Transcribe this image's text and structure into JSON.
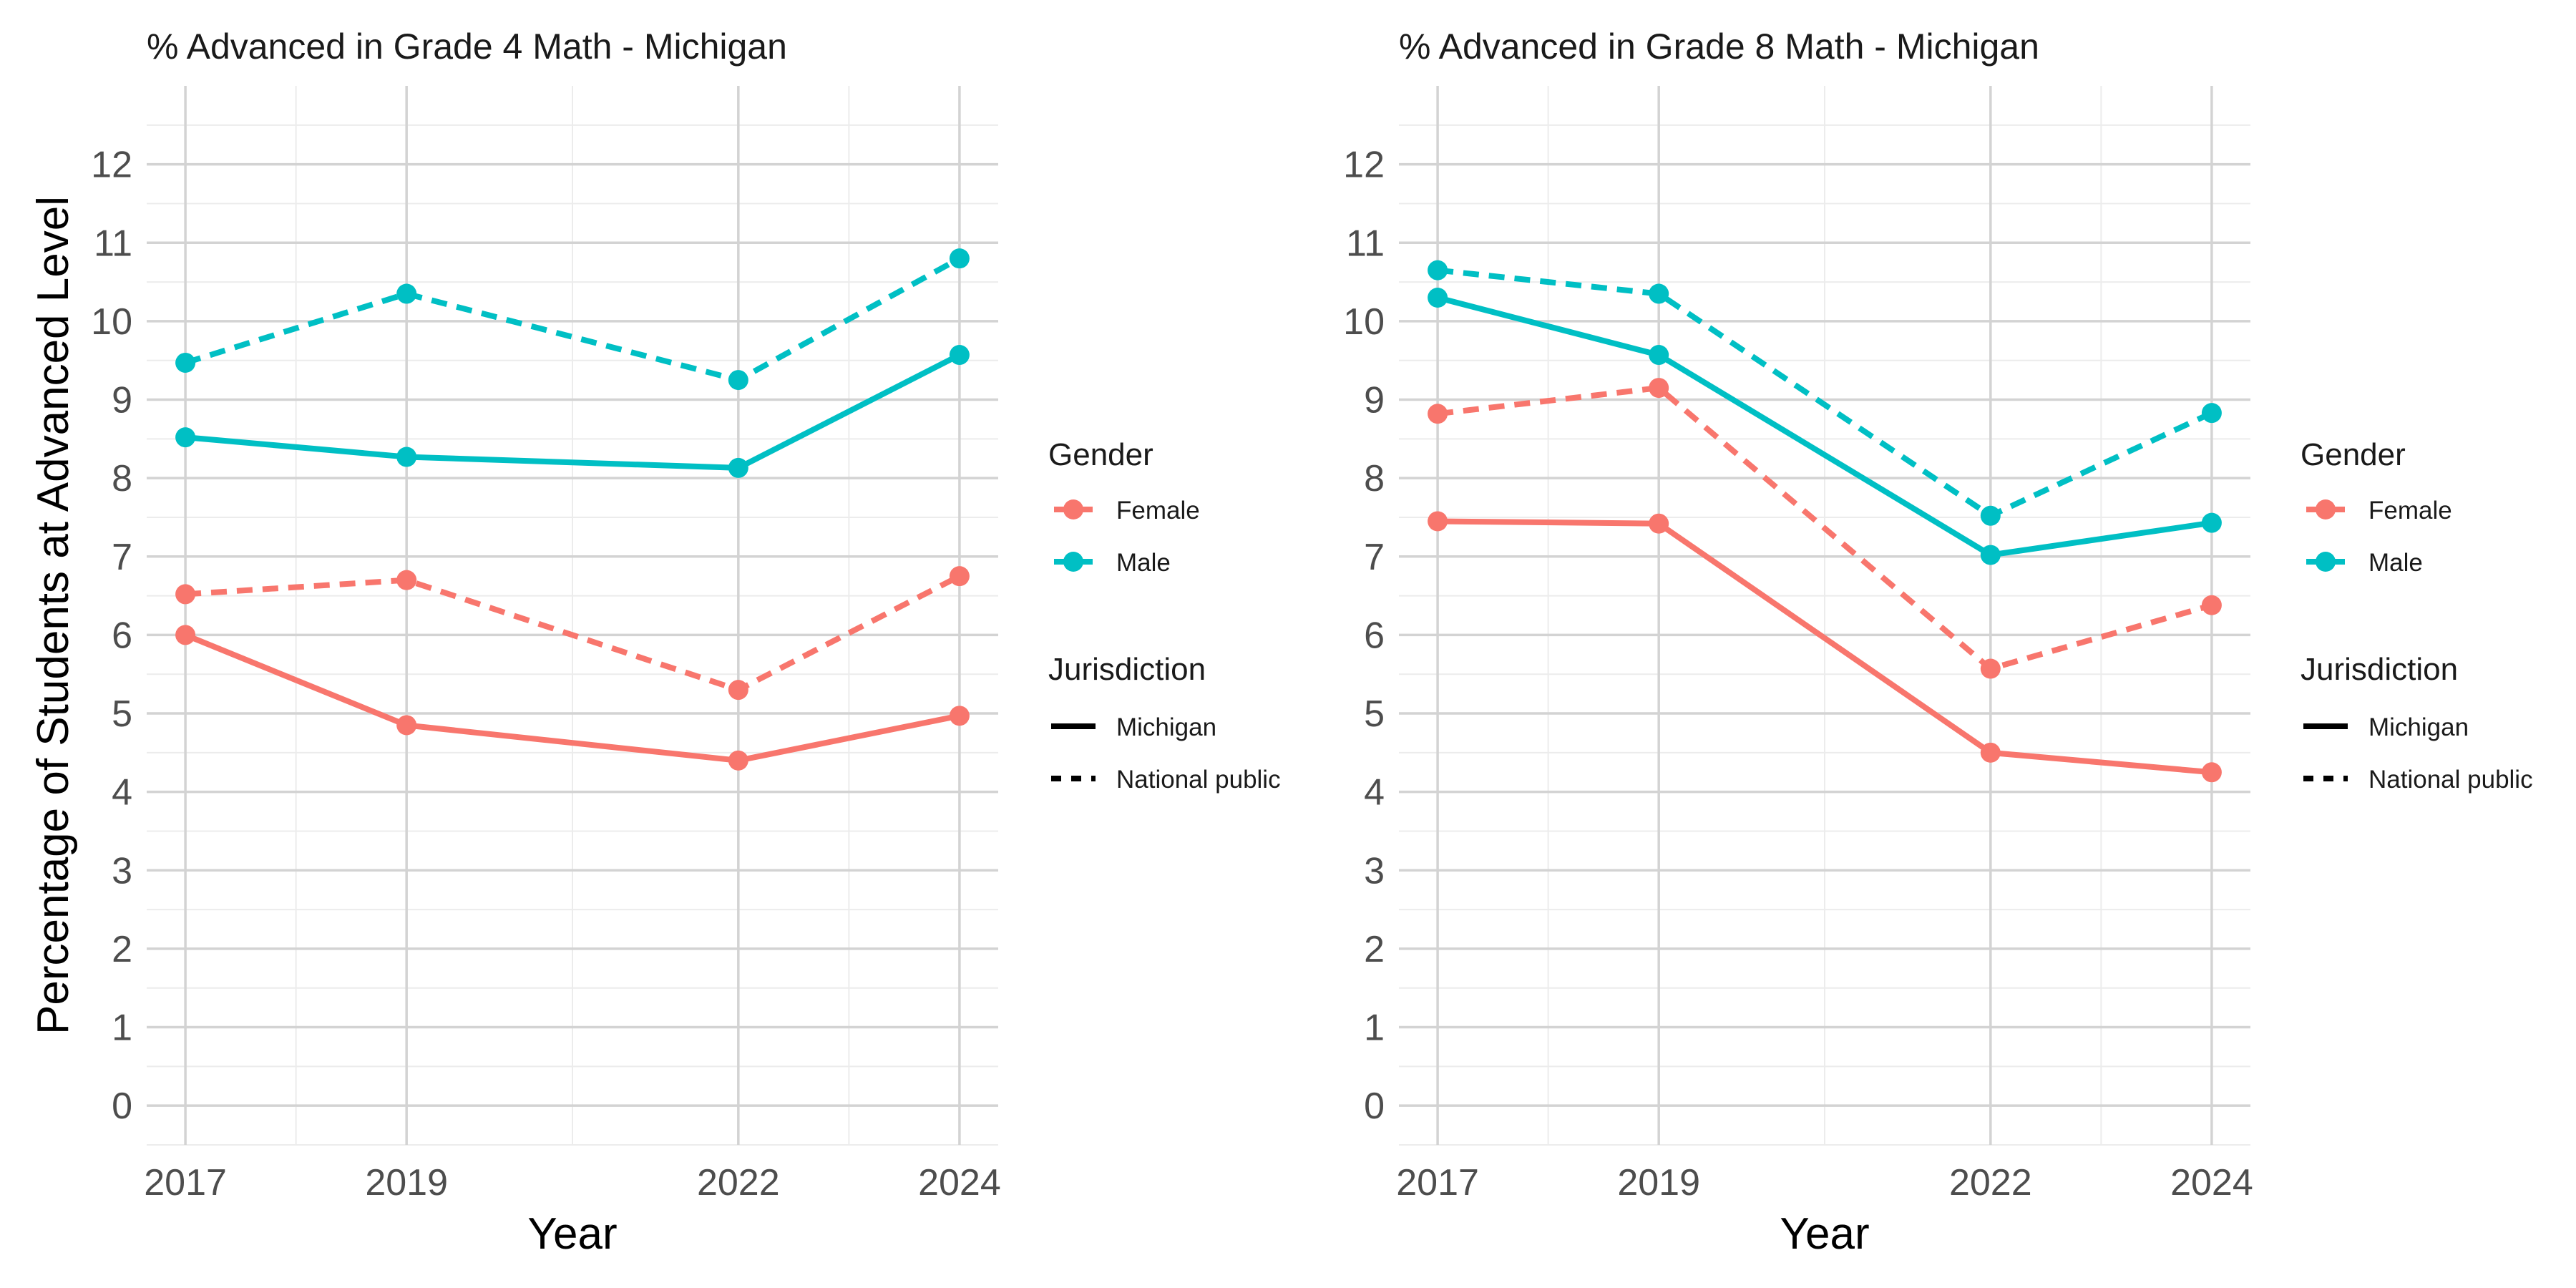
{
  "chart_data": [
    {
      "type": "line",
      "title": "% Advanced in Grade 4 Math - Michigan",
      "xlabel": "Year",
      "ylabel": "Percentage of Students at Advanced Level",
      "x": [
        2017,
        2019,
        2022,
        2024
      ],
      "xlim": [
        2016.65,
        2024.35
      ],
      "ylim": [
        -0.5,
        13.0
      ],
      "yticks": [
        0,
        1,
        2,
        3,
        4,
        5,
        6,
        7,
        8,
        9,
        10,
        11,
        12
      ],
      "grid": true,
      "series": [
        {
          "gender": "Female",
          "jurisdiction": "Michigan",
          "values": [
            6.0,
            4.85,
            4.4,
            4.97
          ]
        },
        {
          "gender": "Female",
          "jurisdiction": "National public",
          "values": [
            6.52,
            6.7,
            5.3,
            6.75
          ]
        },
        {
          "gender": "Male",
          "jurisdiction": "Michigan",
          "values": [
            8.52,
            8.27,
            8.13,
            9.57
          ]
        },
        {
          "gender": "Male",
          "jurisdiction": "National public",
          "values": [
            9.47,
            10.35,
            9.25,
            10.8
          ]
        }
      ],
      "legend_position": "right"
    },
    {
      "type": "line",
      "title": "% Advanced in Grade 8 Math - Michigan",
      "xlabel": "Year",
      "ylabel": "",
      "x": [
        2017,
        2019,
        2022,
        2024
      ],
      "xlim": [
        2016.65,
        2024.35
      ],
      "ylim": [
        -0.5,
        13.0
      ],
      "yticks": [
        0,
        1,
        2,
        3,
        4,
        5,
        6,
        7,
        8,
        9,
        10,
        11,
        12
      ],
      "grid": true,
      "series": [
        {
          "gender": "Female",
          "jurisdiction": "Michigan",
          "values": [
            7.45,
            7.42,
            4.5,
            4.25
          ]
        },
        {
          "gender": "Female",
          "jurisdiction": "National public",
          "values": [
            8.82,
            9.15,
            5.57,
            6.38
          ]
        },
        {
          "gender": "Male",
          "jurisdiction": "Michigan",
          "values": [
            10.3,
            9.57,
            7.02,
            7.43
          ]
        },
        {
          "gender": "Male",
          "jurisdiction": "National public",
          "values": [
            10.65,
            10.35,
            7.52,
            8.83
          ]
        }
      ],
      "legend_position": "right"
    }
  ],
  "legend": {
    "gender_title": "Gender",
    "gender_items": [
      {
        "label": "Female",
        "color": "#F8766D"
      },
      {
        "label": "Male",
        "color": "#00BFC4"
      }
    ],
    "jurisdiction_title": "Jurisdiction",
    "jurisdiction_items": [
      {
        "label": "Michigan",
        "style": "solid"
      },
      {
        "label": "National public",
        "style": "dashed"
      }
    ]
  },
  "colors": {
    "Female": "#F8766D",
    "Male": "#00BFC4",
    "grid_major": "#d3d3d3",
    "grid_minor": "#ececec"
  }
}
